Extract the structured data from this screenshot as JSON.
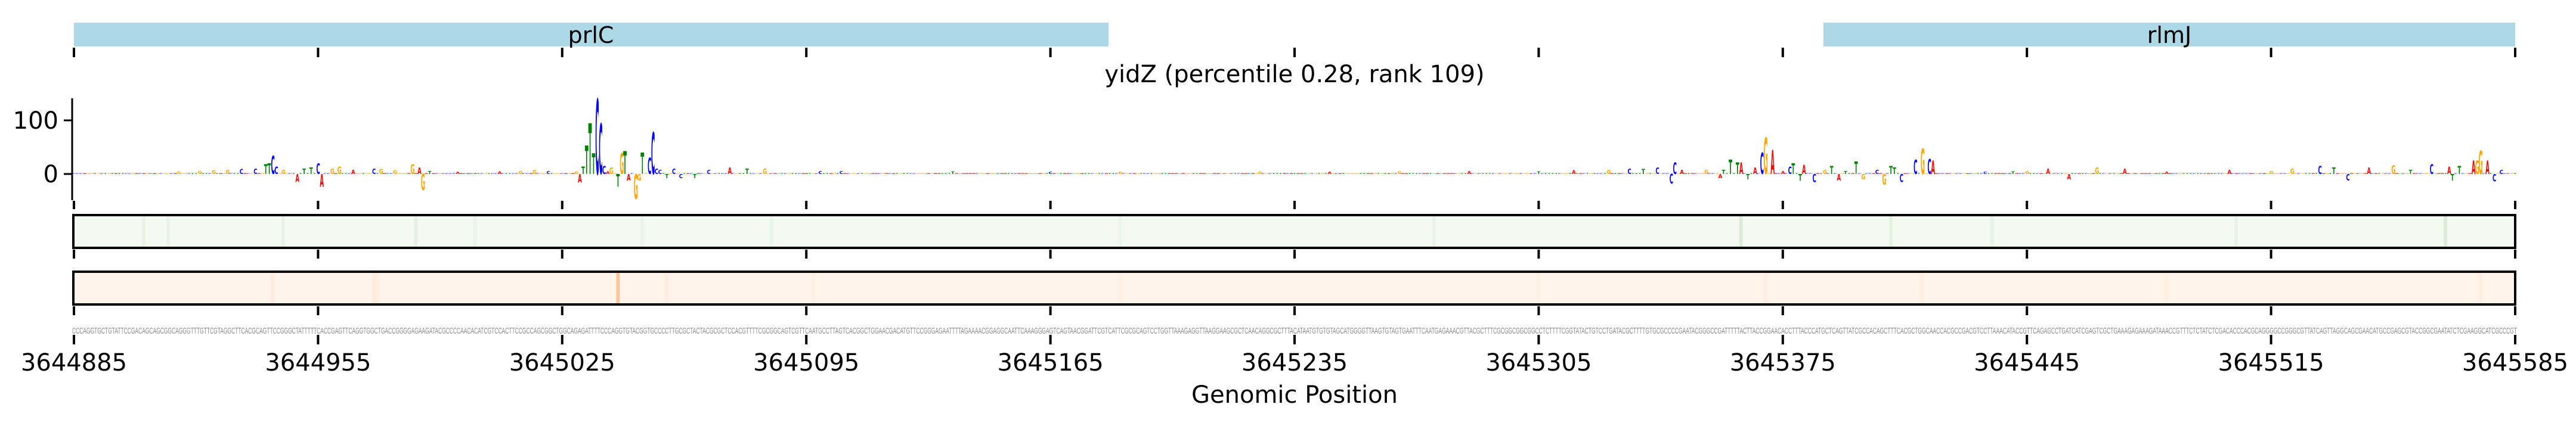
{
  "chart_data": {
    "type": "sequence-logo",
    "title": "yidZ (percentile 0.28, rank 109)",
    "xlabel": "Genomic Position",
    "ylabel": "",
    "xlim": [
      3644885,
      3645585
    ],
    "ylim": [
      -49,
      141
    ],
    "y_ticks": [
      {
        "value": 100,
        "label": "100"
      },
      {
        "value": 0,
        "label": "0"
      }
    ],
    "x_ticks": [
      {
        "value": 3644885,
        "label": "3644885"
      },
      {
        "value": 3644955,
        "label": "3644955"
      },
      {
        "value": 3645025,
        "label": "3645025"
      },
      {
        "value": 3645095,
        "label": "3645095"
      },
      {
        "value": 3645165,
        "label": "3645165"
      },
      {
        "value": 3645235,
        "label": "3645235"
      },
      {
        "value": 3645305,
        "label": "3645305"
      },
      {
        "value": 3645375,
        "label": "3645375"
      },
      {
        "value": 3645445,
        "label": "3645445"
      },
      {
        "value": 3645515,
        "label": "3645515"
      },
      {
        "value": 3645585,
        "label": "3645585"
      }
    ],
    "genes": [
      {
        "name": "prlC",
        "start": 3644885,
        "end": 3645181
      },
      {
        "name": "rlmJ",
        "start": 3645390,
        "end": 3645585
      }
    ],
    "sequence": "CCCAGGTGCTGTATTCCGACAGCAGCGGCAGGGTTTGTTCGTAGGCTTCACGCAGTTCCGGGCTATTTTTCACCGAGTTCAGGTGGCTGACCGGGGAGAAGATACGCCCCAACACATCGTCCACTTCCGCCAGCGGCTGGCAGAGATTTTCCCAGGTGTACGGTGCCCCTTGCGCTACTACGCGCTCCACGTTTTCGCGGCAGTCGTTCAATGCCTTAGTCACGGCTGGAACGACATGTTCCGGGAGAATTTTAGAAAACGGAGGCAATTCAAAGGGAGTCAGTAACGGATTCGTCATTCGCGCAGTCCTGGTTAAAGAGGTTAAGGAAGCGCTCAACAGGCGCTTTACATAATGTGTGTAGCATGGGGTTAAGTGTAGTGAATTTCAATGAGAAACGTTACGCTTTCGCGGCGGCGGCCTCTTTTCGGTATACTGTCCTGATACGCTTTTGTGCGCCCCGAATACGGGCCGATTTTTACTTACCGGAACACCTTTACCCATGCTCAGTTATCGCCACAGCTTTCACGCTGGCAACCACGCCGACGTCCTTAAACATACCGTTCAGAGCCTGATCATCGAGTCGCTGAAAGAGAAAGATAAACCGTTTCTCTATCTCGACACCCACGCAGGGGCCGGGCGTTATCAGTTAGGCAGCGAACATGCCGAGCGTACCGGCGAATATCTCGAAGGCATCGCCCGT",
    "base_colors": {
      "A": "#ff0000",
      "C": "#0000ff",
      "G": "#ffa500",
      "T": "#008000"
    },
    "default_attribution": 1.5,
    "attributions": [
      [
        30,
        5
      ],
      [
        36,
        6
      ],
      [
        40,
        7
      ],
      [
        44,
        8
      ],
      [
        48,
        9
      ],
      [
        52,
        10
      ],
      [
        55,
        18
      ],
      [
        56,
        20
      ],
      [
        57,
        34
      ],
      [
        58,
        14
      ],
      [
        60,
        8
      ],
      [
        64,
        -15
      ],
      [
        66,
        10
      ],
      [
        68,
        12
      ],
      [
        70,
        20
      ],
      [
        71,
        -24
      ],
      [
        74,
        10
      ],
      [
        76,
        14
      ],
      [
        80,
        8
      ],
      [
        86,
        10
      ],
      [
        88,
        9
      ],
      [
        92,
        7
      ],
      [
        97,
        18
      ],
      [
        99,
        12
      ],
      [
        100,
        -30
      ],
      [
        102,
        6
      ],
      [
        110,
        4
      ],
      [
        122,
        5
      ],
      [
        128,
        6
      ],
      [
        132,
        8
      ],
      [
        136,
        6
      ],
      [
        144,
        5
      ],
      [
        145,
        -16
      ],
      [
        146,
        14
      ],
      [
        147,
        53
      ],
      [
        148,
        95
      ],
      [
        149,
        38
      ],
      [
        150,
        140
      ],
      [
        151,
        94
      ],
      [
        152,
        15
      ],
      [
        153,
        5
      ],
      [
        154,
        12
      ],
      [
        156,
        -24
      ],
      [
        157,
        39
      ],
      [
        158,
        43
      ],
      [
        159,
        -12
      ],
      [
        161,
        -46
      ],
      [
        162,
        -12
      ],
      [
        163,
        40
      ],
      [
        165,
        30
      ],
      [
        166,
        78
      ],
      [
        167,
        10
      ],
      [
        168,
        8
      ],
      [
        170,
        -8
      ],
      [
        172,
        10
      ],
      [
        174,
        -8
      ],
      [
        178,
        -8
      ],
      [
        182,
        8
      ],
      [
        188,
        12
      ],
      [
        193,
        10
      ],
      [
        198,
        10
      ],
      [
        214,
        6
      ],
      [
        220,
        6
      ],
      [
        252,
        5
      ],
      [
        280,
        4
      ],
      [
        300,
        4
      ],
      [
        340,
        5
      ],
      [
        360,
        4
      ],
      [
        380,
        5
      ],
      [
        400,
        6
      ],
      [
        420,
        5
      ],
      [
        430,
        7
      ],
      [
        440,
        8
      ],
      [
        446,
        10
      ],
      [
        450,
        9
      ],
      [
        454,
        12
      ],
      [
        458,
        -18
      ],
      [
        459,
        22
      ],
      [
        461,
        8
      ],
      [
        468,
        8
      ],
      [
        472,
        -8
      ],
      [
        473,
        8
      ],
      [
        475,
        27
      ],
      [
        477,
        22
      ],
      [
        478,
        22
      ],
      [
        480,
        -10
      ],
      [
        482,
        12
      ],
      [
        484,
        40
      ],
      [
        485,
        68
      ],
      [
        487,
        45
      ],
      [
        490,
        6
      ],
      [
        492,
        14
      ],
      [
        493,
        20
      ],
      [
        495,
        -13
      ],
      [
        496,
        17
      ],
      [
        499,
        -15
      ],
      [
        502,
        8
      ],
      [
        504,
        15
      ],
      [
        506,
        -12
      ],
      [
        508,
        6
      ],
      [
        511,
        23
      ],
      [
        513,
        -10
      ],
      [
        517,
        8
      ],
      [
        519,
        -20
      ],
      [
        521,
        15
      ],
      [
        522,
        12
      ],
      [
        524,
        -15
      ],
      [
        528,
        27
      ],
      [
        530,
        48
      ],
      [
        532,
        28
      ],
      [
        533,
        25
      ],
      [
        548,
        4
      ],
      [
        556,
        5
      ],
      [
        560,
        6
      ],
      [
        566,
        10
      ],
      [
        572,
        -10
      ],
      [
        580,
        12
      ],
      [
        588,
        10
      ],
      [
        600,
        4
      ],
      [
        618,
        8
      ],
      [
        630,
        6
      ],
      [
        636,
        10
      ],
      [
        644,
        15
      ],
      [
        648,
        12
      ],
      [
        652,
        -12
      ],
      [
        658,
        12
      ],
      [
        665,
        16
      ],
      [
        670,
        8
      ],
      [
        676,
        18
      ],
      [
        681,
        14
      ],
      [
        682,
        -12
      ],
      [
        684,
        15
      ],
      [
        688,
        25
      ],
      [
        689,
        25
      ],
      [
        690,
        44
      ],
      [
        692,
        25
      ],
      [
        694,
        -14
      ],
      [
        696,
        8
      ]
    ],
    "track_green": {
      "base": "#f4f9f1",
      "color": "#2ca02c",
      "marks": [
        [
          20,
          0.05
        ],
        [
          27,
          0.05
        ],
        [
          60,
          0.06
        ],
        [
          98,
          0.07
        ],
        [
          115,
          0.05
        ],
        [
          163,
          0.04
        ],
        [
          200,
          0.04
        ],
        [
          300,
          0.04
        ],
        [
          390,
          0.05
        ],
        [
          478,
          0.12
        ],
        [
          521,
          0.08
        ],
        [
          550,
          0.05
        ],
        [
          620,
          0.05
        ],
        [
          680,
          0.12
        ]
      ]
    },
    "track_orange": {
      "base": "#fff4ea",
      "color": "#fd8d3c",
      "marks": [
        [
          57,
          0.08
        ],
        [
          86,
          0.08
        ],
        [
          87,
          0.06
        ],
        [
          156,
          0.45
        ],
        [
          170,
          0.06
        ],
        [
          212,
          0.04
        ],
        [
          300,
          0.04
        ],
        [
          420,
          0.04
        ],
        [
          485,
          0.06
        ],
        [
          530,
          0.05
        ],
        [
          600,
          0.04
        ],
        [
          690,
          0.06
        ]
      ]
    }
  }
}
